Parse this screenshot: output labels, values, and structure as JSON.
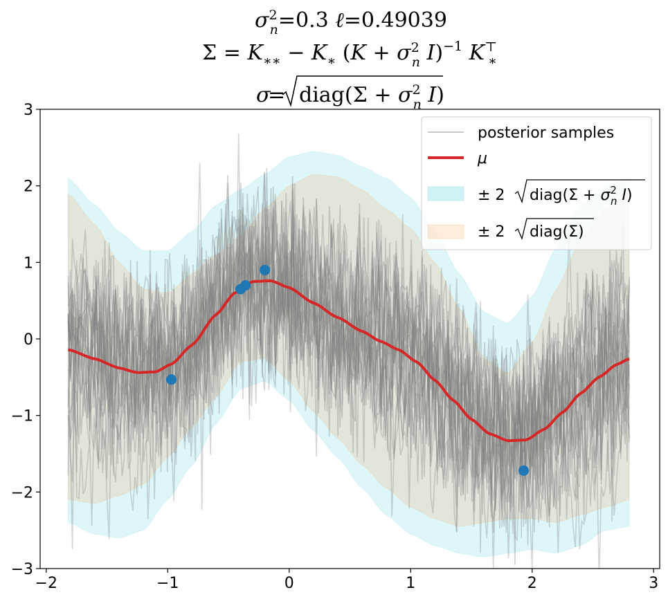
{
  "chart_data": {
    "type": "line",
    "title_lines": [
      "σn²=0.3   ℓ=0.49039",
      "Σ = K** − K* (K + σn² I)⁻¹ K*ᵀ",
      "σ=√diag(Σ + σn² I)"
    ],
    "xlabel": "",
    "ylabel": "",
    "xlim": [
      -2.05,
      3.05
    ],
    "ylim": [
      -3,
      3
    ],
    "xticks": [
      -2,
      -1,
      0,
      1,
      2,
      3
    ],
    "yticks": [
      -3,
      -2,
      -1,
      0,
      1,
      2,
      3
    ],
    "xtick_labels": [
      "−2",
      "−1",
      "0",
      "1",
      "2",
      "3"
    ],
    "ytick_labels": [
      "−3",
      "−2",
      "−1",
      "0",
      "1",
      "2",
      "3"
    ],
    "grid": false,
    "legend_position": "top-right",
    "x_range": [
      -1.82,
      2.8
    ],
    "training_points": {
      "x": [
        -0.97,
        -0.4,
        -0.36,
        -0.2,
        1.93
      ],
      "y": [
        -0.53,
        0.65,
        0.7,
        0.9,
        -1.72
      ]
    },
    "mean": {
      "name": "μ",
      "x": [
        -1.82,
        -1.6,
        -1.4,
        -1.25,
        -1.1,
        -0.97,
        -0.8,
        -0.6,
        -0.45,
        -0.3,
        -0.15,
        0.0,
        0.2,
        0.4,
        0.6,
        0.75,
        0.9,
        1.05,
        1.2,
        1.35,
        1.5,
        1.65,
        1.8,
        1.95,
        2.1,
        2.25,
        2.4,
        2.55,
        2.7,
        2.8
      ],
      "y": [
        -0.14,
        -0.26,
        -0.38,
        -0.44,
        -0.43,
        -0.33,
        -0.08,
        0.32,
        0.6,
        0.75,
        0.76,
        0.67,
        0.47,
        0.28,
        0.1,
        -0.03,
        -0.14,
        -0.3,
        -0.54,
        -0.8,
        -1.05,
        -1.24,
        -1.33,
        -1.32,
        -1.18,
        -0.96,
        -0.71,
        -0.5,
        -0.33,
        -0.26
      ]
    },
    "band_2sigma_total": {
      "name": "± 2 √diag(Σ + σn² I)",
      "x": [
        -1.82,
        -1.6,
        -1.4,
        -1.2,
        -1.0,
        -0.8,
        -0.6,
        -0.4,
        -0.2,
        0.0,
        0.2,
        0.4,
        0.6,
        0.8,
        1.0,
        1.2,
        1.4,
        1.6,
        1.8,
        2.0,
        2.2,
        2.4,
        2.6,
        2.8
      ],
      "upper": [
        2.1,
        1.75,
        1.4,
        1.15,
        1.15,
        1.4,
        1.75,
        1.95,
        2.15,
        2.38,
        2.45,
        2.4,
        2.25,
        2.1,
        1.85,
        1.4,
        0.85,
        0.35,
        0.2,
        0.55,
        1.2,
        1.75,
        2.0,
        2.1
      ],
      "lower": [
        -2.4,
        -2.55,
        -2.6,
        -2.5,
        -2.1,
        -1.65,
        -1.1,
        -0.65,
        -0.55,
        -0.8,
        -1.2,
        -1.55,
        -1.95,
        -2.3,
        -2.55,
        -2.7,
        -2.8,
        -2.85,
        -2.8,
        -2.75,
        -2.8,
        -2.7,
        -2.5,
        -2.45
      ]
    },
    "band_2sigma": {
      "name": "± 2 √diag(Σ)",
      "x": [
        -1.82,
        -1.6,
        -1.4,
        -1.2,
        -1.0,
        -0.8,
        -0.6,
        -0.4,
        -0.2,
        0.0,
        0.2,
        0.4,
        0.6,
        0.8,
        1.0,
        1.2,
        1.4,
        1.6,
        1.8,
        2.0,
        2.2,
        2.4,
        2.6,
        2.8
      ],
      "upper": [
        1.9,
        1.5,
        1.0,
        0.65,
        0.6,
        0.85,
        1.1,
        1.35,
        1.7,
        2.0,
        2.15,
        2.12,
        1.95,
        1.7,
        1.45,
        1.0,
        0.4,
        -0.25,
        -0.45,
        -0.05,
        0.65,
        1.3,
        1.7,
        1.95
      ],
      "lower": [
        -2.1,
        -2.15,
        -2.05,
        -1.9,
        -1.55,
        -1.15,
        -0.75,
        -0.3,
        -0.25,
        -0.55,
        -0.95,
        -1.3,
        -1.65,
        -1.95,
        -2.2,
        -2.35,
        -2.45,
        -2.4,
        -2.35,
        -2.35,
        -2.4,
        -2.3,
        -2.2,
        -2.1
      ]
    },
    "posterior_samples": {
      "name": "posterior samples",
      "count": 20,
      "noise_sd": 0.55
    },
    "legend": [
      {
        "label": "posterior samples",
        "kind": "line",
        "color": "#c7c7c7"
      },
      {
        "label": "μ",
        "kind": "line",
        "color": "#d62728"
      },
      {
        "label": "± 2 √diag(Σ + σn² I)",
        "kind": "patch",
        "color": "#17becf"
      },
      {
        "label": "± 2 √diag(Σ)",
        "kind": "patch",
        "color": "#ff7f0e"
      }
    ],
    "colors": {
      "mean": "#d62728",
      "points": "#1f77b4",
      "band_total": "#17becf",
      "band": "#ff7f0e",
      "samples": "#7f7f7f"
    }
  }
}
